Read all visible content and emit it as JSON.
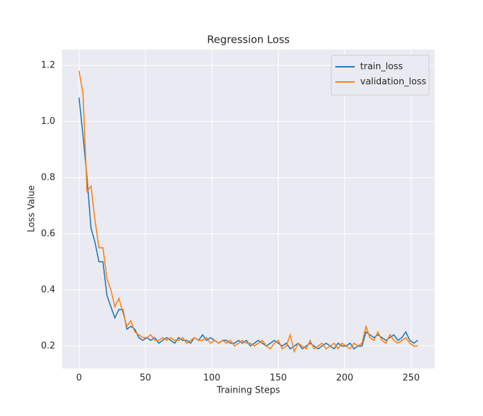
{
  "chart_data": {
    "type": "line",
    "title": "Regression Loss",
    "xlabel": "Training Steps",
    "ylabel": "Loss Value",
    "x": [
      0,
      3,
      6,
      9,
      12,
      15,
      18,
      21,
      24,
      27,
      30,
      33,
      36,
      39,
      42,
      45,
      48,
      51,
      54,
      57,
      60,
      63,
      66,
      69,
      72,
      75,
      78,
      81,
      84,
      87,
      90,
      93,
      96,
      99,
      102,
      105,
      108,
      111,
      114,
      117,
      120,
      123,
      126,
      129,
      132,
      135,
      138,
      141,
      144,
      147,
      150,
      153,
      156,
      159,
      162,
      165,
      168,
      171,
      174,
      177,
      180,
      183,
      186,
      189,
      192,
      195,
      198,
      201,
      204,
      207,
      210,
      213,
      216,
      219,
      222,
      225,
      228,
      231,
      234,
      237,
      240,
      243,
      246,
      249,
      252,
      255
    ],
    "series": [
      {
        "name": "train_loss",
        "color": "#1f77b4",
        "values": [
          1.085,
          0.95,
          0.8,
          0.62,
          0.57,
          0.5,
          0.5,
          0.38,
          0.34,
          0.3,
          0.33,
          0.33,
          0.26,
          0.27,
          0.26,
          0.23,
          0.22,
          0.23,
          0.22,
          0.23,
          0.21,
          0.22,
          0.23,
          0.22,
          0.21,
          0.23,
          0.22,
          0.22,
          0.21,
          0.23,
          0.22,
          0.24,
          0.22,
          0.23,
          0.22,
          0.21,
          0.22,
          0.22,
          0.21,
          0.21,
          0.22,
          0.21,
          0.22,
          0.2,
          0.21,
          0.22,
          0.21,
          0.2,
          0.21,
          0.22,
          0.21,
          0.2,
          0.21,
          0.19,
          0.2,
          0.21,
          0.19,
          0.2,
          0.21,
          0.2,
          0.19,
          0.2,
          0.21,
          0.2,
          0.19,
          0.21,
          0.2,
          0.2,
          0.21,
          0.19,
          0.2,
          0.2,
          0.25,
          0.24,
          0.23,
          0.24,
          0.23,
          0.22,
          0.23,
          0.24,
          0.22,
          0.23,
          0.25,
          0.22,
          0.21,
          0.22
        ]
      },
      {
        "name": "validation_loss",
        "color": "#ff7f0e",
        "values": [
          1.18,
          1.1,
          0.75,
          0.77,
          0.65,
          0.55,
          0.55,
          0.44,
          0.4,
          0.34,
          0.37,
          0.32,
          0.27,
          0.29,
          0.25,
          0.24,
          0.23,
          0.23,
          0.24,
          0.22,
          0.22,
          0.23,
          0.22,
          0.23,
          0.22,
          0.22,
          0.23,
          0.21,
          0.22,
          0.23,
          0.22,
          0.22,
          0.23,
          0.21,
          0.22,
          0.21,
          0.22,
          0.21,
          0.22,
          0.2,
          0.21,
          0.22,
          0.21,
          0.21,
          0.2,
          0.21,
          0.22,
          0.2,
          0.19,
          0.21,
          0.22,
          0.19,
          0.2,
          0.24,
          0.18,
          0.21,
          0.2,
          0.19,
          0.22,
          0.19,
          0.2,
          0.21,
          0.19,
          0.2,
          0.21,
          0.19,
          0.21,
          0.2,
          0.19,
          0.21,
          0.2,
          0.21,
          0.27,
          0.23,
          0.22,
          0.25,
          0.22,
          0.21,
          0.24,
          0.22,
          0.21,
          0.22,
          0.23,
          0.21,
          0.2,
          0.2
        ]
      }
    ],
    "xlim": [
      -12.75,
      267.75
    ],
    "ylim": [
      0.12,
      1.256
    ],
    "xticks": [
      0,
      50,
      100,
      150,
      200,
      250
    ],
    "yticks": [
      0.2,
      0.4,
      0.6,
      0.8,
      {
        "value": 1,
        "label": "1.0"
      },
      1.2
    ],
    "grid": true,
    "legend": "upper right"
  }
}
